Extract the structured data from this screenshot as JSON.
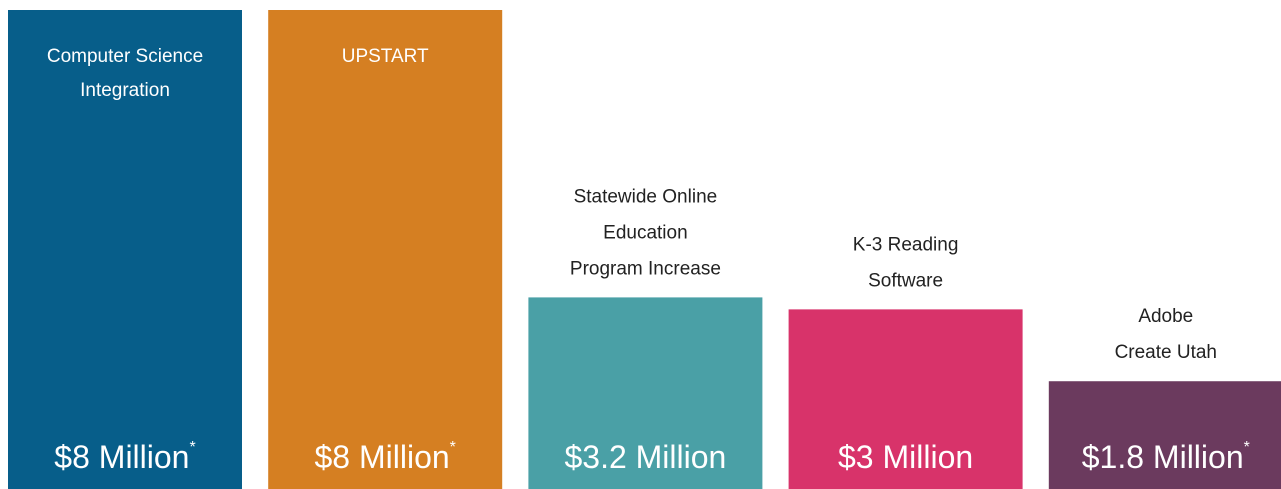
{
  "chart_data": {
    "type": "bar",
    "categories": [
      [
        "Computer Science",
        "Integration"
      ],
      [
        "UPSTART"
      ],
      [
        "Statewide Online",
        "Education",
        "Program Increase"
      ],
      [
        "K-3 Reading",
        "Software"
      ],
      [
        "Adobe",
        "Create Utah"
      ]
    ],
    "values": [
      8,
      8,
      3.2,
      3,
      1.8
    ],
    "value_labels": [
      "$8 Million",
      "$8 Million",
      "$3.2 Million",
      "$3 Million",
      "$1.8 Million"
    ],
    "markers": [
      "*",
      "*",
      null,
      null,
      "*"
    ],
    "colors": [
      "#075e8a",
      "#d57f22",
      "#4aa0a6",
      "#d8336a",
      "#6b3a5e"
    ]
  }
}
